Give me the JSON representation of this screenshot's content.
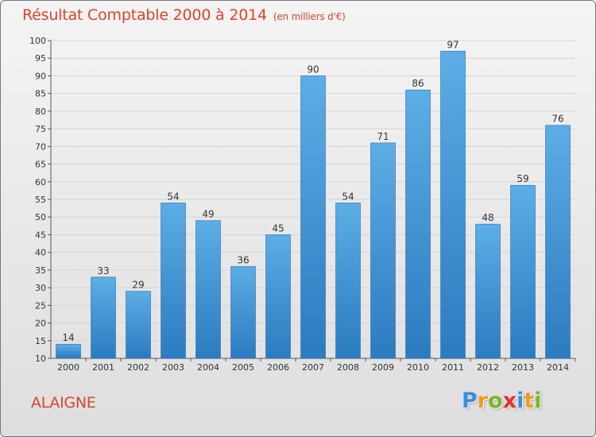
{
  "chart_data": {
    "type": "bar",
    "title": "Résultat Comptable 2000 à 2014",
    "unit_label": "(en milliers d'€)",
    "categories": [
      "2000",
      "2001",
      "2002",
      "2003",
      "2004",
      "2005",
      "2006",
      "2007",
      "2008",
      "2009",
      "2010",
      "2011",
      "2012",
      "2013",
      "2014"
    ],
    "values": [
      14,
      33,
      29,
      54,
      49,
      36,
      45,
      90,
      54,
      71,
      86,
      97,
      48,
      59,
      76
    ],
    "ylim": [
      10,
      100
    ],
    "yticks": [
      10,
      15,
      20,
      25,
      30,
      35,
      40,
      45,
      50,
      55,
      60,
      65,
      70,
      75,
      80,
      85,
      90,
      95,
      100
    ],
    "grid": true,
    "xlabel": "",
    "ylabel": ""
  },
  "commune": "ALAIGNE",
  "logo": {
    "letters": [
      "P",
      "r",
      "o",
      "x",
      "i",
      "t",
      "i"
    ],
    "colors": [
      "#3a8fd8",
      "#f29a1d",
      "#78b52c",
      "#e4322b",
      "#3a8fd8",
      "#f29a1d",
      "#78b52c"
    ]
  },
  "colors": {
    "bar_top": "#5dade6",
    "bar_bottom": "#2b7bc0",
    "accent": "#d8452b"
  }
}
